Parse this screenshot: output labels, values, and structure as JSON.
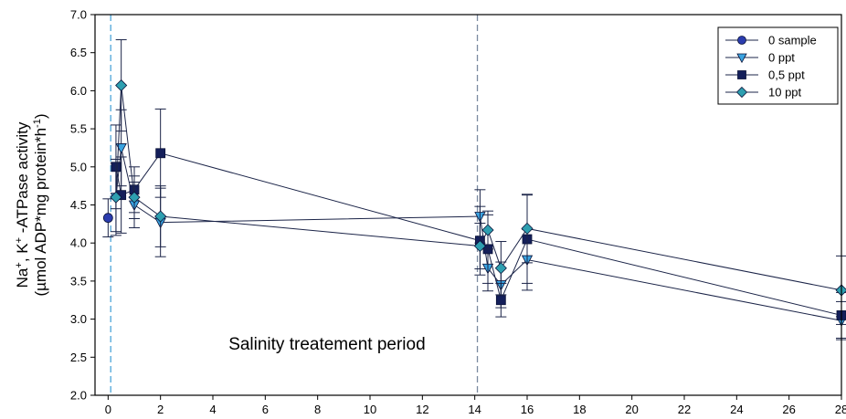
{
  "chart_data": {
    "type": "scatter",
    "title": "",
    "xlabel": "",
    "ylabel_line1_parts": [
      "Na",
      "+",
      ", K",
      "+",
      " -ATPase activity"
    ],
    "ylabel_line2_parts": [
      "(µmol ADP*mg protein*h",
      "-1",
      ")"
    ],
    "xlim": [
      -0.5,
      28
    ],
    "ylim": [
      2.0,
      7.0
    ],
    "x_ticks": [
      0,
      2,
      4,
      6,
      8,
      10,
      12,
      14,
      16,
      18,
      20,
      22,
      24,
      26,
      28
    ],
    "y_ticks": [
      2.0,
      2.5,
      3.0,
      3.5,
      4.0,
      4.5,
      5.0,
      5.5,
      6.0,
      6.5,
      7.0
    ],
    "y_tick_labels": [
      "2.0",
      "2.5",
      "3.0",
      "3.5",
      "4.0",
      "4.5",
      "5.0",
      "5.5",
      "6.0",
      "6.5",
      "7.0"
    ],
    "vertical_lines": [
      {
        "x": 0.1,
        "color": "#4da6d9"
      },
      {
        "x": 14.1,
        "color": "#7a8aa0"
      }
    ],
    "annotation": {
      "text": "Salinity treatement period",
      "x": 4.6,
      "y": 2.6
    },
    "legend_position": "top-right",
    "series": [
      {
        "name": "0 sample",
        "marker": "circle",
        "color": "#2b3cae",
        "points": [
          {
            "x": 0,
            "y": 4.33,
            "err": 0.25
          }
        ]
      },
      {
        "name": "0 ppt",
        "marker": "triangle-down",
        "color": "#3aa3e0",
        "points": [
          {
            "x": 0.3,
            "y": 4.6,
            "err": 0.45
          },
          {
            "x": 0.5,
            "y": 5.25,
            "err": 0.5
          },
          {
            "x": 1.0,
            "y": 4.5,
            "err": 0.3
          },
          {
            "x": 2.0,
            "y": 4.27,
            "err": 0.45
          },
          {
            "x": 14.2,
            "y": 4.35,
            "err": 0.35
          },
          {
            "x": 14.5,
            "y": 3.67,
            "err": 0.3
          },
          {
            "x": 15.0,
            "y": 3.45,
            "err": 0.3
          },
          {
            "x": 16.0,
            "y": 3.78,
            "err": 0.4
          },
          {
            "x": 28.0,
            "y": 2.98,
            "err": 0.25
          }
        ]
      },
      {
        "name": "0,5 ppt",
        "marker": "square",
        "color": "#141f5a",
        "points": [
          {
            "x": 0.3,
            "y": 5.0,
            "err": 0.55
          },
          {
            "x": 0.5,
            "y": 4.63,
            "err": 0.5
          },
          {
            "x": 1.0,
            "y": 4.7,
            "err": 0.3
          },
          {
            "x": 2.0,
            "y": 5.18,
            "err": 0.58
          },
          {
            "x": 14.2,
            "y": 4.03,
            "err": 0.45
          },
          {
            "x": 14.5,
            "y": 3.92,
            "err": 0.45
          },
          {
            "x": 15.0,
            "y": 3.25,
            "err": 0.22
          },
          {
            "x": 16.0,
            "y": 4.05,
            "err": 0.58
          },
          {
            "x": 28.0,
            "y": 3.05,
            "err": 0.3
          }
        ]
      },
      {
        "name": "10 ppt",
        "marker": "diamond",
        "color": "#2e9fb0",
        "points": [
          {
            "x": 0.3,
            "y": 4.6,
            "err": 0.5
          },
          {
            "x": 0.5,
            "y": 6.07,
            "err": 0.6
          },
          {
            "x": 1.0,
            "y": 4.6,
            "err": 0.28
          },
          {
            "x": 2.0,
            "y": 4.35,
            "err": 0.4
          },
          {
            "x": 14.2,
            "y": 3.96,
            "err": 0.3
          },
          {
            "x": 14.5,
            "y": 4.17,
            "err": 0.25
          },
          {
            "x": 15.0,
            "y": 3.67,
            "err": 0.35
          },
          {
            "x": 16.0,
            "y": 4.19,
            "err": 0.45
          },
          {
            "x": 28.0,
            "y": 3.38,
            "err": 0.45
          }
        ]
      }
    ]
  }
}
